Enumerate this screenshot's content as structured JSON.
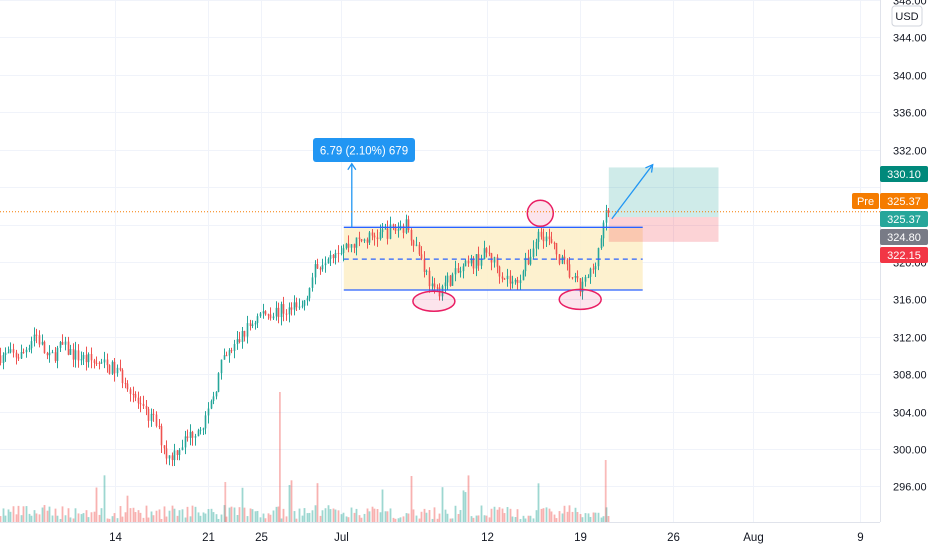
{
  "currency": "USD",
  "price_labels": {
    "pre": {
      "tag": "Pre",
      "value": "325.37"
    },
    "last": "325.37",
    "target": "330.10",
    "entry": "324.80",
    "stop": "322.15"
  },
  "measure_label": "6.79 (2.10%) 679",
  "colors": {
    "up": "#26a69a",
    "down": "#ef5350",
    "pre": "#f57c00",
    "measure": "#2196f3",
    "entry": "#787b86",
    "range_fill": "#fdeec7",
    "circle": "#e91e63"
  },
  "chart_data": {
    "type": "candlestick",
    "title": "",
    "y_axis": {
      "range": [
        292.2,
        348.0
      ],
      "ticks": [
        296.0,
        300.0,
        304.0,
        308.0,
        312.0,
        316.0,
        320.0,
        324.0,
        328.0,
        332.0,
        336.0,
        340.0,
        344.0,
        348.0
      ],
      "tick_labels": [
        "296.00",
        "300.00",
        "304.00",
        "308.00",
        "312.00",
        "316.00",
        "320.00",
        "",
        "",
        "332.00",
        "336.00",
        "340.00",
        "344.00",
        "348.00"
      ]
    },
    "x_axis": {
      "tick_labels": [
        "14",
        "21",
        "25",
        "Jul",
        "12",
        "19",
        "26",
        "Aug",
        "9"
      ]
    },
    "price_path": [
      [
        "2021-06-07",
        310.0
      ],
      [
        "2021-06-08",
        312.5
      ],
      [
        "2021-06-09",
        309.5
      ],
      [
        "2021-06-10",
        311.0
      ],
      [
        "2021-06-11",
        310.0
      ],
      [
        "2021-06-14",
        308.5
      ],
      [
        "2021-06-15",
        307.0
      ],
      [
        "2021-06-16",
        304.0
      ],
      [
        "2021-06-17",
        303.0
      ],
      [
        "2021-06-18",
        299.0
      ],
      [
        "2021-06-21",
        303.5
      ],
      [
        "2021-06-22",
        309.0
      ],
      [
        "2021-06-23",
        311.0
      ],
      [
        "2021-06-24",
        313.0
      ],
      [
        "2021-06-25",
        314.5
      ],
      [
        "2021-06-28",
        315.0
      ],
      [
        "2021-06-29",
        319.0
      ],
      [
        "2021-06-30",
        321.0
      ],
      [
        "2021-07-01",
        321.5
      ],
      [
        "2021-07-02",
        322.0
      ],
      [
        "2021-07-06",
        324.0
      ],
      [
        "2021-07-07",
        320.5
      ],
      [
        "2021-07-08",
        316.5
      ],
      [
        "2021-07-09",
        318.0
      ],
      [
        "2021-07-12",
        321.0
      ],
      [
        "2021-07-13",
        319.0
      ],
      [
        "2021-07-14",
        317.5
      ],
      [
        "2021-07-15",
        320.0
      ],
      [
        "2021-07-16",
        323.5
      ],
      [
        "2021-07-19",
        317.0
      ],
      [
        "2021-07-20",
        319.5
      ],
      [
        "2021-07-21",
        325.37
      ]
    ],
    "annotations": {
      "range_box": {
        "top": 323.7,
        "bottom": 317.0,
        "mid": 320.3
      },
      "measure": {
        "from": 323.7,
        "to": 330.5,
        "label": "6.79 (2.10%) 679"
      },
      "long_position": {
        "entry": 324.8,
        "target": 330.1,
        "stop": 322.15
      },
      "circled_points": [
        {
          "date": "2021-07-08",
          "price": 315.8
        },
        {
          "date": "2021-07-16",
          "price": 325.2
        },
        {
          "date": "2021-07-19",
          "price": 316.0
        }
      ]
    }
  }
}
